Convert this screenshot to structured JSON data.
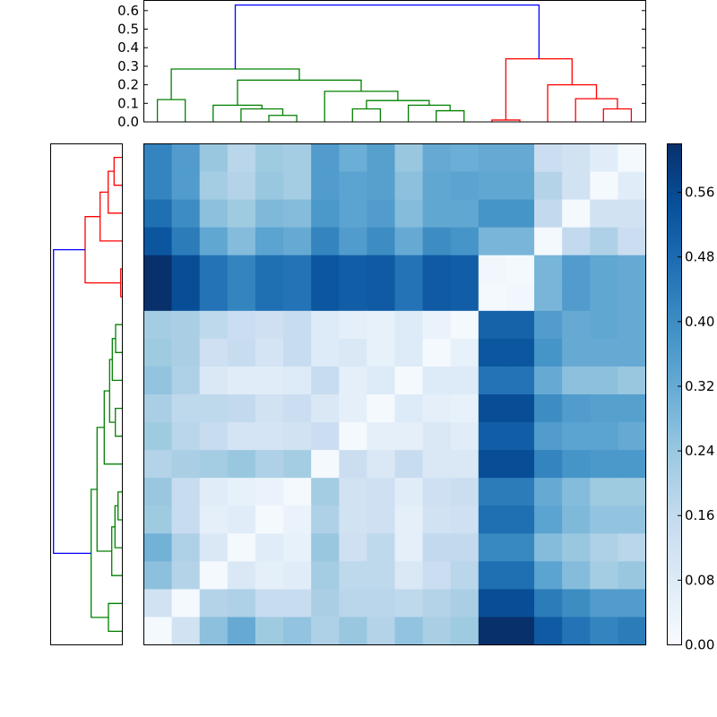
{
  "chart_data": [
    {
      "type": "dendrogram",
      "name": "column-dendrogram",
      "orientation": "top",
      "ylabel": "",
      "ylim": [
        0.0,
        0.65
      ],
      "yticks": [
        "0.0",
        "0.1",
        "0.2",
        "0.3",
        "0.4",
        "0.5",
        "0.6"
      ],
      "colors": {
        "root": "#0000ff",
        "cluster_a": "#008000",
        "cluster_b": "#ff0000"
      },
      "links": [
        {
          "left_x": 175.6,
          "right_x": 206.7,
          "height": 0.12,
          "color": "#008000"
        },
        {
          "left_x": 300.0,
          "right_x": 331.1,
          "height": 0.035,
          "color": "#008000"
        },
        {
          "left_x": 268.9,
          "right_x": 315.5,
          "height": 0.07,
          "color": "#008000"
        },
        {
          "left_x": 237.8,
          "right_x": 292.2,
          "height": 0.09,
          "color": "#008000"
        },
        {
          "left_x": 393.3,
          "right_x": 424.4,
          "height": 0.07,
          "color": "#008000"
        },
        {
          "left_x": 486.7,
          "right_x": 517.8,
          "height": 0.06,
          "color": "#008000"
        },
        {
          "left_x": 455.6,
          "right_x": 502.2,
          "height": 0.09,
          "color": "#008000"
        },
        {
          "left_x": 408.9,
          "right_x": 478.9,
          "height": 0.115,
          "color": "#008000"
        },
        {
          "left_x": 362.2,
          "right_x": 443.9,
          "height": 0.165,
          "color": "#008000"
        },
        {
          "left_x": 265.0,
          "right_x": 403.0,
          "height": 0.225,
          "color": "#008000"
        },
        {
          "left_x": 191.1,
          "right_x": 334.0,
          "height": 0.285,
          "color": "#008000"
        },
        {
          "left_x": 548.9,
          "right_x": 580.0,
          "height": 0.01,
          "color": "#ff0000"
        },
        {
          "left_x": 673.3,
          "right_x": 704.4,
          "height": 0.07,
          "color": "#ff0000"
        },
        {
          "left_x": 642.2,
          "right_x": 688.9,
          "height": 0.125,
          "color": "#ff0000"
        },
        {
          "left_x": 611.1,
          "right_x": 665.5,
          "height": 0.2,
          "color": "#ff0000"
        },
        {
          "left_x": 564.4,
          "right_x": 638.3,
          "height": 0.34,
          "color": "#ff0000"
        },
        {
          "left_x": 262.5,
          "right_x": 601.4,
          "height": 0.63,
          "color": "#0000ff"
        }
      ]
    },
    {
      "type": "dendrogram",
      "name": "row-dendrogram",
      "orientation": "left",
      "links": [
        {
          "top_y": 175.6,
          "bottom_y": 206.7,
          "x": 127.3,
          "color": "#ff0000"
        },
        {
          "top_y": 191.1,
          "bottom_y": 237.8,
          "x": 120.7,
          "color": "#ff0000"
        },
        {
          "top_y": 214.4,
          "bottom_y": 268.9,
          "x": 111.7,
          "color": "#ff0000"
        },
        {
          "top_y": 300.0,
          "bottom_y": 331.1,
          "x": 134.7,
          "color": "#ff0000"
        },
        {
          "top_y": 241.7,
          "bottom_y": 315.6,
          "x": 95.0,
          "color": "#ff0000"
        },
        {
          "top_y": 362.2,
          "bottom_y": 393.3,
          "x": 129.0,
          "color": "#008000"
        },
        {
          "top_y": 377.8,
          "bottom_y": 424.4,
          "x": 125.3,
          "color": "#008000"
        },
        {
          "top_y": 455.6,
          "bottom_y": 486.7,
          "x": 128.7,
          "color": "#008000"
        },
        {
          "top_y": 401.1,
          "bottom_y": 471.1,
          "x": 122.3,
          "color": "#008000"
        },
        {
          "top_y": 436.1,
          "bottom_y": 517.8,
          "x": 116.3,
          "color": "#008000"
        },
        {
          "top_y": 548.9,
          "bottom_y": 580.0,
          "x": 131.7,
          "color": "#008000"
        },
        {
          "top_y": 564.4,
          "bottom_y": 611.1,
          "x": 128.3,
          "color": "#008000"
        },
        {
          "top_y": 587.8,
          "bottom_y": 642.2,
          "x": 124.7,
          "color": "#008000"
        },
        {
          "top_y": 476.9,
          "bottom_y": 615.0,
          "x": 108.3,
          "color": "#008000"
        },
        {
          "top_y": 673.3,
          "bottom_y": 704.4,
          "x": 121.0,
          "color": "#008000"
        },
        {
          "top_y": 546.0,
          "bottom_y": 688.9,
          "x": 101.7,
          "color": "#008000"
        },
        {
          "top_y": 278.6,
          "bottom_y": 617.4,
          "x": 59.7,
          "color": "#0000ff"
        }
      ]
    },
    {
      "type": "heatmap",
      "name": "clustered-distance-matrix",
      "colormap": "Blues",
      "rows": 18,
      "cols": 18,
      "vmin": 0.0,
      "vmax": 0.62,
      "colorbar": {
        "ticks": [
          "0.00",
          "0.08",
          "0.16",
          "0.24",
          "0.32",
          "0.40",
          "0.48",
          "0.56"
        ],
        "tick_values": [
          0.0,
          0.08,
          0.16,
          0.24,
          0.32,
          0.4,
          0.48,
          0.56
        ],
        "position": "right"
      },
      "values": [
        [
          0.42,
          0.36,
          0.24,
          0.18,
          0.23,
          0.22,
          0.36,
          0.31,
          0.35,
          0.24,
          0.32,
          0.31,
          0.32,
          0.32,
          0.14,
          0.12,
          0.07,
          0.01
        ],
        [
          0.42,
          0.36,
          0.22,
          0.19,
          0.24,
          0.22,
          0.36,
          0.34,
          0.35,
          0.26,
          0.33,
          0.34,
          0.33,
          0.33,
          0.19,
          0.12,
          0.01,
          0.07
        ],
        [
          0.47,
          0.4,
          0.26,
          0.23,
          0.28,
          0.27,
          0.37,
          0.34,
          0.36,
          0.27,
          0.33,
          0.33,
          0.38,
          0.38,
          0.16,
          0.01,
          0.12,
          0.12
        ],
        [
          0.53,
          0.44,
          0.33,
          0.27,
          0.34,
          0.32,
          0.42,
          0.36,
          0.4,
          0.32,
          0.4,
          0.38,
          0.29,
          0.29,
          0.01,
          0.16,
          0.2,
          0.14
        ],
        [
          0.62,
          0.55,
          0.46,
          0.42,
          0.47,
          0.46,
          0.53,
          0.51,
          0.52,
          0.46,
          0.52,
          0.51,
          0.02,
          0.01,
          0.29,
          0.36,
          0.33,
          0.32
        ],
        [
          0.62,
          0.55,
          0.46,
          0.42,
          0.47,
          0.46,
          0.53,
          0.51,
          0.52,
          0.46,
          0.52,
          0.51,
          0.01,
          0.02,
          0.29,
          0.36,
          0.33,
          0.32
        ],
        [
          0.22,
          0.21,
          0.17,
          0.14,
          0.13,
          0.15,
          0.08,
          0.06,
          0.05,
          0.08,
          0.04,
          0.01,
          0.5,
          0.5,
          0.36,
          0.32,
          0.33,
          0.32
        ],
        [
          0.23,
          0.21,
          0.13,
          0.15,
          0.11,
          0.15,
          0.08,
          0.09,
          0.05,
          0.08,
          0.01,
          0.05,
          0.53,
          0.53,
          0.38,
          0.32,
          0.32,
          0.32
        ],
        [
          0.25,
          0.2,
          0.09,
          0.07,
          0.07,
          0.08,
          0.15,
          0.06,
          0.08,
          0.01,
          0.08,
          0.08,
          0.46,
          0.46,
          0.32,
          0.26,
          0.26,
          0.24
        ],
        [
          0.21,
          0.17,
          0.17,
          0.16,
          0.12,
          0.14,
          0.09,
          0.06,
          0.01,
          0.08,
          0.06,
          0.05,
          0.55,
          0.55,
          0.4,
          0.36,
          0.35,
          0.35
        ],
        [
          0.23,
          0.18,
          0.15,
          0.11,
          0.11,
          0.12,
          0.14,
          0.01,
          0.06,
          0.06,
          0.09,
          0.07,
          0.51,
          0.51,
          0.36,
          0.34,
          0.34,
          0.32
        ],
        [
          0.19,
          0.21,
          0.22,
          0.24,
          0.2,
          0.22,
          0.01,
          0.14,
          0.09,
          0.15,
          0.09,
          0.09,
          0.55,
          0.55,
          0.42,
          0.38,
          0.37,
          0.37
        ],
        [
          0.24,
          0.15,
          0.07,
          0.05,
          0.04,
          0.01,
          0.22,
          0.12,
          0.13,
          0.07,
          0.13,
          0.14,
          0.44,
          0.44,
          0.32,
          0.27,
          0.23,
          0.23
        ],
        [
          0.23,
          0.15,
          0.06,
          0.07,
          0.01,
          0.04,
          0.2,
          0.12,
          0.13,
          0.06,
          0.12,
          0.13,
          0.47,
          0.47,
          0.34,
          0.28,
          0.25,
          0.25
        ],
        [
          0.3,
          0.2,
          0.09,
          0.01,
          0.07,
          0.05,
          0.24,
          0.13,
          0.17,
          0.06,
          0.16,
          0.16,
          0.41,
          0.41,
          0.27,
          0.24,
          0.2,
          0.18
        ],
        [
          0.26,
          0.19,
          0.01,
          0.09,
          0.06,
          0.07,
          0.22,
          0.17,
          0.17,
          0.09,
          0.14,
          0.18,
          0.47,
          0.47,
          0.34,
          0.27,
          0.22,
          0.24
        ],
        [
          0.12,
          0.01,
          0.19,
          0.2,
          0.15,
          0.15,
          0.21,
          0.18,
          0.18,
          0.17,
          0.19,
          0.21,
          0.55,
          0.55,
          0.44,
          0.4,
          0.36,
          0.36
        ],
        [
          0.01,
          0.12,
          0.26,
          0.32,
          0.23,
          0.25,
          0.2,
          0.24,
          0.19,
          0.25,
          0.21,
          0.23,
          0.62,
          0.62,
          0.52,
          0.46,
          0.42,
          0.44
        ]
      ]
    }
  ],
  "colormap_stops": [
    "#f7fbff",
    "#deebf7",
    "#c6dbef",
    "#9ecae1",
    "#6baed6",
    "#4292c6",
    "#2171b5",
    "#08519c",
    "#08306b"
  ],
  "frame_color": "#000000"
}
